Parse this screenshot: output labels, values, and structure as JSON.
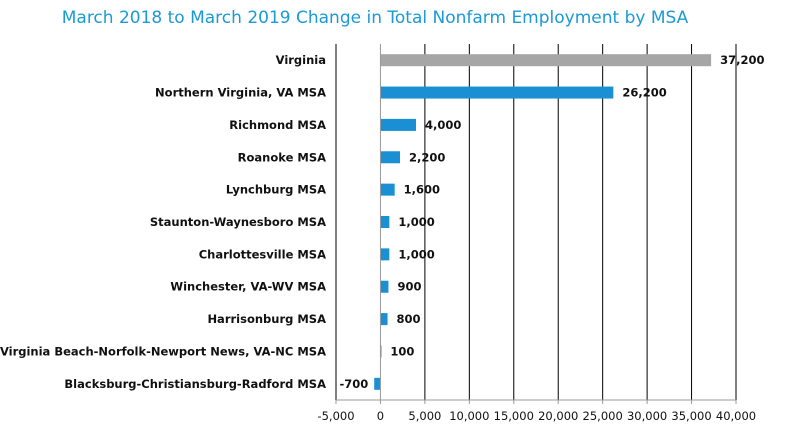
{
  "chart_data": {
    "type": "bar",
    "orientation": "horizontal",
    "title": "March 2018 to March 2019 Change in Total Nonfarm Employment by MSA",
    "categories": [
      "Virginia",
      "Northern Virginia, VA MSA",
      "Richmond MSA",
      "Roanoke MSA",
      "Lynchburg MSA",
      "Staunton-Waynesboro MSA",
      "Charlottesville MSA",
      "Winchester, VA-WV MSA",
      "Harrisonburg MSA",
      "Virginia Beach-Norfolk-Newport News, VA-NC MSA",
      "Blacksburg-Christiansburg-Radford MSA"
    ],
    "values": [
      37200,
      26200,
      4000,
      2200,
      1600,
      1000,
      1000,
      900,
      800,
      100,
      -700
    ],
    "value_labels": [
      "37,200",
      "26,200",
      "4,000",
      "2,200",
      "1,600",
      "1,000",
      "1,000",
      "900",
      "800",
      "100",
      "-700"
    ],
    "bar_colors": [
      "#a6a6a6",
      "#1a8fd4",
      "#1a8fd4",
      "#1a8fd4",
      "#1a8fd4",
      "#1a8fd4",
      "#1a8fd4",
      "#1a8fd4",
      "#1a8fd4",
      "#1a8fd4",
      "#1a8fd4"
    ],
    "xlim": [
      -5000,
      40000
    ],
    "x_ticks": [
      -5000,
      0,
      5000,
      10000,
      15000,
      20000,
      25000,
      30000,
      35000,
      40000
    ],
    "x_tick_labels": [
      "-5,000",
      "0",
      "5,000",
      "10,000",
      "15,000",
      "20,000",
      "25,000",
      "30,000",
      "35,000",
      "40,000"
    ],
    "xlabel": "",
    "ylabel": "",
    "grid": "vertical",
    "legend": "none"
  }
}
